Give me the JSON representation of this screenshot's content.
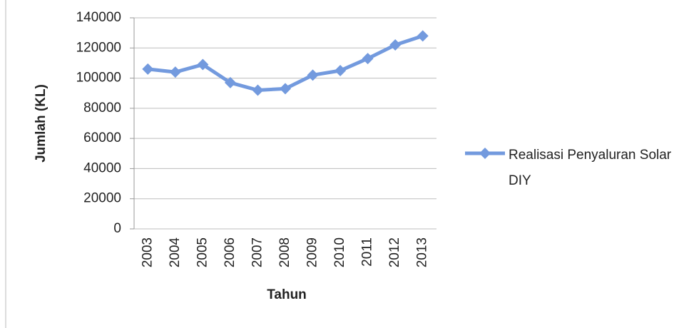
{
  "chart_data": {
    "type": "line",
    "x_label": "Tahun",
    "y_label": "Jumlah (KL)",
    "categories": [
      "2003",
      "2004",
      "2005",
      "2006",
      "2007",
      "2008",
      "2009",
      "2010",
      "2011",
      "2012",
      "2013"
    ],
    "series": [
      {
        "name": "Realisasi Penyaluran Solar DIY",
        "color": "#739ade",
        "values": [
          106000,
          104000,
          109000,
          97000,
          92000,
          93000,
          102000,
          105000,
          113000,
          122000,
          128000
        ]
      }
    ],
    "ylim": [
      0,
      140000
    ],
    "yticks": [
      0,
      20000,
      40000,
      60000,
      80000,
      100000,
      120000,
      140000
    ],
    "grid": true,
    "legend": "right"
  }
}
